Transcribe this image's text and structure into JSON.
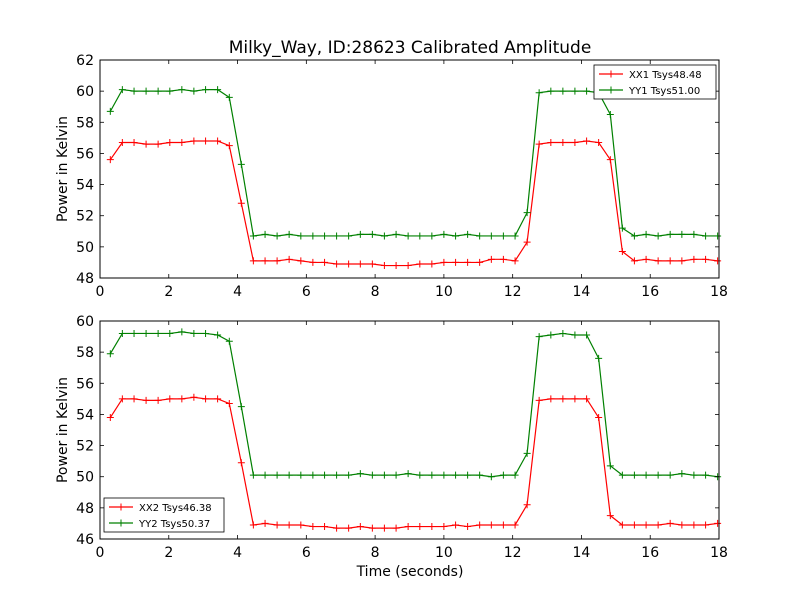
{
  "chart_data": {
    "title": "Milky_Way, ID:28623 Calibrated Amplitude",
    "xlabel": "Time (seconds)",
    "panels": [
      {
        "type": "line",
        "ylabel": "Power in Kelvin",
        "xlim": [
          0,
          18
        ],
        "ylim": [
          48,
          62
        ],
        "xticks": [
          0,
          2,
          4,
          6,
          8,
          10,
          12,
          14,
          16,
          18
        ],
        "yticks": [
          48,
          50,
          52,
          54,
          56,
          58,
          60,
          62
        ],
        "legend_position": "top-right",
        "x": [
          0.3,
          0.65,
          0.99,
          1.34,
          1.69,
          2.03,
          2.38,
          2.73,
          3.07,
          3.42,
          3.76,
          4.11,
          4.46,
          4.8,
          5.15,
          5.5,
          5.84,
          6.19,
          6.53,
          6.88,
          7.23,
          7.57,
          7.92,
          8.27,
          8.61,
          8.96,
          9.3,
          9.65,
          10.0,
          10.34,
          10.69,
          11.04,
          11.38,
          11.73,
          12.07,
          12.42,
          12.77,
          13.11,
          13.46,
          13.81,
          14.15,
          14.5,
          14.84,
          15.19,
          15.54,
          15.88,
          16.23,
          16.58,
          16.92,
          17.27,
          17.61,
          17.96
        ],
        "series": [
          {
            "name": "XX1 Tsys48.48",
            "color": "#ff0000",
            "values": [
              55.6,
              56.7,
              56.7,
              56.6,
              56.6,
              56.7,
              56.7,
              56.8,
              56.8,
              56.8,
              56.5,
              52.8,
              49.1,
              49.1,
              49.1,
              49.2,
              49.1,
              49.0,
              49.0,
              48.9,
              48.9,
              48.9,
              48.9,
              48.8,
              48.8,
              48.8,
              48.9,
              48.9,
              49.0,
              49.0,
              49.0,
              49.0,
              49.2,
              49.2,
              49.1,
              50.3,
              56.6,
              56.7,
              56.7,
              56.7,
              56.8,
              56.7,
              55.6,
              49.7,
              49.1,
              49.2,
              49.1,
              49.1,
              49.1,
              49.2,
              49.2,
              49.1
            ]
          },
          {
            "name": "YY1 Tsys51.00",
            "color": "#008000",
            "values": [
              58.7,
              60.1,
              60.0,
              60.0,
              60.0,
              60.0,
              60.1,
              60.0,
              60.1,
              60.1,
              59.6,
              55.3,
              50.7,
              50.8,
              50.7,
              50.8,
              50.7,
              50.7,
              50.7,
              50.7,
              50.7,
              50.8,
              50.8,
              50.7,
              50.8,
              50.7,
              50.7,
              50.7,
              50.8,
              50.7,
              50.8,
              50.7,
              50.7,
              50.7,
              50.7,
              52.2,
              59.9,
              60.0,
              60.0,
              60.0,
              60.0,
              59.9,
              58.5,
              51.2,
              50.7,
              50.8,
              50.7,
              50.8,
              50.8,
              50.8,
              50.7,
              50.7
            ]
          }
        ]
      },
      {
        "type": "line",
        "ylabel": "Power in Kelvin",
        "xlim": [
          0,
          18
        ],
        "ylim": [
          46,
          60
        ],
        "xticks": [
          0,
          2,
          4,
          6,
          8,
          10,
          12,
          14,
          16,
          18
        ],
        "yticks": [
          46,
          48,
          50,
          52,
          54,
          56,
          58,
          60
        ],
        "legend_position": "bottom-left",
        "x": [
          0.3,
          0.65,
          0.99,
          1.34,
          1.69,
          2.03,
          2.38,
          2.73,
          3.07,
          3.42,
          3.76,
          4.11,
          4.46,
          4.8,
          5.15,
          5.5,
          5.84,
          6.19,
          6.53,
          6.88,
          7.23,
          7.57,
          7.92,
          8.27,
          8.61,
          8.96,
          9.3,
          9.65,
          10.0,
          10.34,
          10.69,
          11.04,
          11.38,
          11.73,
          12.07,
          12.42,
          12.77,
          13.11,
          13.46,
          13.81,
          14.15,
          14.5,
          14.84,
          15.19,
          15.54,
          15.88,
          16.23,
          16.58,
          16.92,
          17.27,
          17.61,
          17.96
        ],
        "series": [
          {
            "name": "XX2 Tsys46.38",
            "color": "#ff0000",
            "values": [
              53.8,
              55.0,
              55.0,
              54.9,
              54.9,
              55.0,
              55.0,
              55.1,
              55.0,
              55.0,
              54.7,
              50.9,
              46.9,
              47.0,
              46.9,
              46.9,
              46.9,
              46.8,
              46.8,
              46.7,
              46.7,
              46.8,
              46.7,
              46.7,
              46.7,
              46.8,
              46.8,
              46.8,
              46.8,
              46.9,
              46.8,
              46.9,
              46.9,
              46.9,
              46.9,
              48.2,
              54.9,
              55.0,
              55.0,
              55.0,
              55.0,
              53.8,
              47.5,
              46.9,
              46.9,
              46.9,
              46.9,
              47.0,
              46.9,
              46.9,
              46.9,
              47.0
            ]
          },
          {
            "name": "YY2 Tsys50.37",
            "color": "#008000",
            "values": [
              57.9,
              59.2,
              59.2,
              59.2,
              59.2,
              59.2,
              59.3,
              59.2,
              59.2,
              59.1,
              58.7,
              54.5,
              50.1,
              50.1,
              50.1,
              50.1,
              50.1,
              50.1,
              50.1,
              50.1,
              50.1,
              50.2,
              50.1,
              50.1,
              50.1,
              50.2,
              50.1,
              50.1,
              50.1,
              50.1,
              50.1,
              50.1,
              50.0,
              50.1,
              50.1,
              51.5,
              59.0,
              59.1,
              59.2,
              59.1,
              59.1,
              57.6,
              50.7,
              50.1,
              50.1,
              50.1,
              50.1,
              50.1,
              50.2,
              50.1,
              50.1,
              50.0
            ]
          }
        ]
      }
    ]
  }
}
